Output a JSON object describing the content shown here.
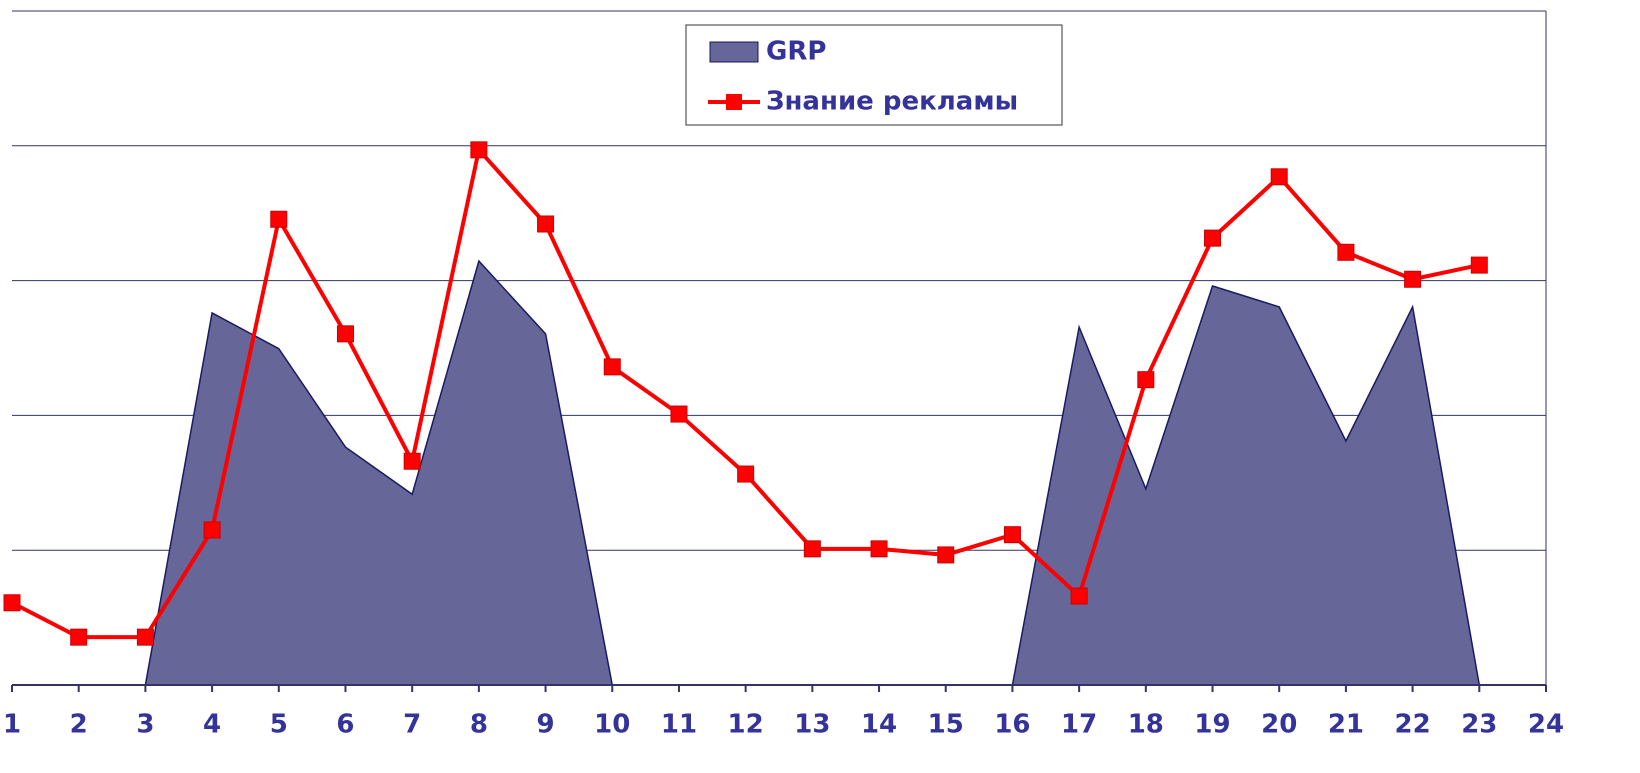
{
  "chart_data": {
    "type": "area_line",
    "categories": [
      "1",
      "2",
      "3",
      "4",
      "5",
      "6",
      "7",
      "8",
      "9",
      "10",
      "11",
      "12",
      "13",
      "14",
      "15",
      "16",
      "17",
      "18",
      "19",
      "20",
      "21",
      "22",
      "23",
      "24"
    ],
    "series": [
      {
        "name": "GRP",
        "type": "area",
        "color": "#666699",
        "values": [
          0,
          0,
          0,
          55.2,
          49.9,
          35.3,
          28.3,
          62.9,
          52.1,
          0,
          0,
          0,
          0,
          0,
          0,
          0,
          53.1,
          29.1,
          59.2,
          56.1,
          36.2,
          56.1,
          0,
          null
        ]
      },
      {
        "name": "Знание рекламы",
        "type": "line",
        "color": "#ff0000",
        "values": [
          12.2,
          7.1,
          7.1,
          23,
          69.1,
          52.1,
          33.2,
          79.4,
          68.4,
          47.2,
          40.2,
          31.3,
          20.2,
          20.2,
          19.3,
          22.3,
          13.2,
          45.3,
          66.3,
          75.4,
          64.2,
          60.2,
          62.3,
          null
        ]
      }
    ],
    "ylim": [
      0,
      100
    ],
    "yticks": [
      0,
      20,
      40,
      60,
      80,
      100
    ],
    "grid": true,
    "legend": "top"
  }
}
